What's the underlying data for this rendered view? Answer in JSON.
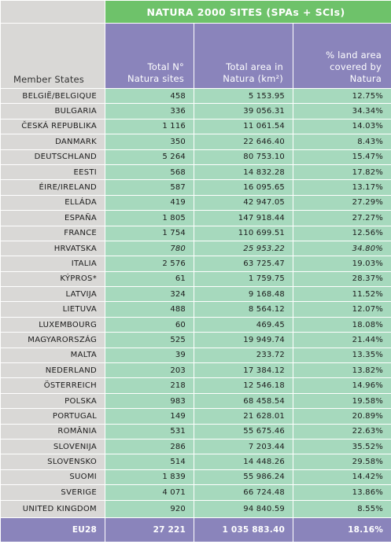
{
  "table": {
    "group_header": "NATURA 2000 SITES (SPAs + SCIs)",
    "col_member": "Member States",
    "col_sites_line1": "Total N°",
    "col_sites_line2": "Natura sites",
    "col_area_line1": "Total area in",
    "col_area_line2": "Natura (km²)",
    "col_pct_line1": "% land area",
    "col_pct_line2": "covered by",
    "col_pct_line3": "Natura",
    "rows": [
      {
        "name": "BELGIË/BELGIQUE",
        "sites": "458",
        "area": "5 153.95",
        "pct": "12.75%"
      },
      {
        "name": "BULGARIA",
        "sites": "336",
        "area": "39 056.31",
        "pct": "34.34%"
      },
      {
        "name": "ČESKÁ REPUBLIKA",
        "sites": "1 116",
        "area": "11 061.54",
        "pct": "14.03%"
      },
      {
        "name": "DANMARK",
        "sites": "350",
        "area": "22 646.40",
        "pct": "8.43%"
      },
      {
        "name": "DEUTSCHLAND",
        "sites": "5 264",
        "area": "80 753.10",
        "pct": "15.47%"
      },
      {
        "name": "EESTI",
        "sites": "568",
        "area": "14 832.28",
        "pct": "17.82%"
      },
      {
        "name": "ÉIRE/IRELAND",
        "sites": "587",
        "area": "16 095.65",
        "pct": "13.17%"
      },
      {
        "name": "ELLÁDA",
        "sites": "419",
        "area": "42 947.05",
        "pct": "27.29%"
      },
      {
        "name": "ESPAÑA",
        "sites": "1 805",
        "area": "147 918.44",
        "pct": "27.27%"
      },
      {
        "name": "FRANCE",
        "sites": "1 754",
        "area": "110 699.51",
        "pct": "12.56%"
      },
      {
        "name": "HRVATSKA",
        "sites": "780",
        "area": "25 953.22",
        "pct": "34.80%"
      },
      {
        "name": "ITALIA",
        "sites": "2 576",
        "area": "63 725.47",
        "pct": "19.03%"
      },
      {
        "name": "KÝPROS*",
        "sites": "61",
        "area": "1 759.75",
        "pct": "28.37%"
      },
      {
        "name": "LATVIJA",
        "sites": "324",
        "area": "9 168.48",
        "pct": "11.52%"
      },
      {
        "name": "LIETUVA",
        "sites": "488",
        "area": "8 564.12",
        "pct": "12.07%"
      },
      {
        "name": "LUXEMBOURG",
        "sites": "60",
        "area": "469.45",
        "pct": "18.08%"
      },
      {
        "name": "MAGYARORSZÁG",
        "sites": "525",
        "area": "19 949.74",
        "pct": "21.44%"
      },
      {
        "name": "MALTA",
        "sites": "39",
        "area": "233.72",
        "pct": "13.35%"
      },
      {
        "name": "NEDERLAND",
        "sites": "203",
        "area": "17 384.12",
        "pct": "13.82%"
      },
      {
        "name": "ÖSTERREICH",
        "sites": "218",
        "area": "12 546.18",
        "pct": "14.96%"
      },
      {
        "name": "POLSKA",
        "sites": "983",
        "area": "68 458.54",
        "pct": "19.58%"
      },
      {
        "name": "PORTUGAL",
        "sites": "149",
        "area": "21 628.01",
        "pct": "20.89%"
      },
      {
        "name": "ROMÂNIA",
        "sites": "531",
        "area": "55 675.46",
        "pct": "22.63%"
      },
      {
        "name": "SLOVENIJA",
        "sites": "286",
        "area": "7 203.44",
        "pct": "35.52%"
      },
      {
        "name": "SLOVENSKO",
        "sites": "514",
        "area": "14 448.26",
        "pct": "29.58%"
      },
      {
        "name": "SUOMI",
        "sites": "1 839",
        "area": "55 986.24",
        "pct": "14.42%"
      },
      {
        "name": "SVERIGE",
        "sites": "4 071",
        "area": "66 724.48",
        "pct": "13.86%"
      },
      {
        "name": "UNITED KINGDOM",
        "sites": "920",
        "area": "94 840.59",
        "pct": "8.55%"
      }
    ],
    "total": {
      "name": "EU28",
      "sites": "27 221",
      "area": "1 035 883.40",
      "pct": "18.16%"
    }
  }
}
